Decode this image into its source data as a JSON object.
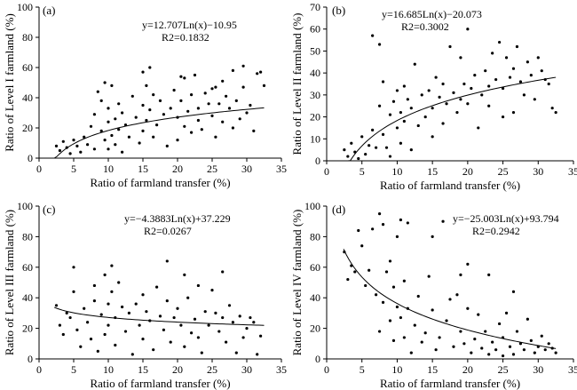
{
  "chart_data": [
    {
      "type": "scatter",
      "panel": "(a)",
      "xlabel": "Ratio of farmland transfer (%)",
      "ylabel": "Ratio of Level I farmland (%)",
      "xlim": [
        0,
        35
      ],
      "ylim": [
        0,
        100
      ],
      "xticks": [
        "0",
        "5",
        "10",
        "15",
        "20",
        "25",
        "30",
        "35"
      ],
      "yticks": [
        "0",
        "20",
        "40",
        "60",
        "80",
        "100"
      ],
      "equation": "y=12.707Ln(x)−10.95",
      "r2": "R2=0.1832",
      "fit": {
        "type": "log",
        "a": 12.707,
        "b": -10.95,
        "xmin": 2.2,
        "xmax": 32.5
      },
      "points": [
        [
          2.5,
          8
        ],
        [
          3,
          5
        ],
        [
          3.5,
          11
        ],
        [
          4,
          7
        ],
        [
          4.5,
          3
        ],
        [
          5,
          12
        ],
        [
          5.5,
          8
        ],
        [
          6,
          4
        ],
        [
          6.5,
          14
        ],
        [
          7,
          9
        ],
        [
          7.5,
          21
        ],
        [
          8,
          6
        ],
        [
          8,
          29
        ],
        [
          8.5,
          44
        ],
        [
          9,
          38
        ],
        [
          9,
          18
        ],
        [
          9.5,
          50
        ],
        [
          9.5,
          12
        ],
        [
          10,
          24
        ],
        [
          10,
          33
        ],
        [
          10,
          6
        ],
        [
          10.5,
          48
        ],
        [
          10.5,
          15
        ],
        [
          11,
          26
        ],
        [
          11,
          9
        ],
        [
          11.5,
          36
        ],
        [
          11.5,
          19
        ],
        [
          12,
          30
        ],
        [
          12,
          4
        ],
        [
          12.5,
          22
        ],
        [
          13,
          14
        ],
        [
          13.5,
          41
        ],
        [
          14,
          27
        ],
        [
          14.5,
          10
        ],
        [
          15,
          57
        ],
        [
          15,
          35
        ],
        [
          15,
          18
        ],
        [
          15.5,
          48
        ],
        [
          15.5,
          25
        ],
        [
          16,
          60
        ],
        [
          16,
          32
        ],
        [
          16.5,
          14
        ],
        [
          16.5,
          42
        ],
        [
          17,
          22
        ],
        [
          17.5,
          38
        ],
        [
          18,
          29
        ],
        [
          18.5,
          8
        ],
        [
          19,
          33
        ],
        [
          19.5,
          45
        ],
        [
          20,
          27
        ],
        [
          20,
          12
        ],
        [
          20.5,
          54
        ],
        [
          20.5,
          38
        ],
        [
          21,
          53
        ],
        [
          21,
          21
        ],
        [
          21.5,
          31
        ],
        [
          22,
          42
        ],
        [
          22,
          17
        ],
        [
          22.5,
          55
        ],
        [
          23,
          33
        ],
        [
          23,
          25
        ],
        [
          23.5,
          19
        ],
        [
          24,
          43
        ],
        [
          24.5,
          36
        ],
        [
          25,
          46
        ],
        [
          25,
          28
        ],
        [
          25.5,
          47
        ],
        [
          25.5,
          14
        ],
        [
          26,
          36
        ],
        [
          26.5,
          51
        ],
        [
          26.5,
          24
        ],
        [
          27,
          41
        ],
        [
          27.5,
          33
        ],
        [
          28,
          58
        ],
        [
          28,
          20
        ],
        [
          28.5,
          38
        ],
        [
          29,
          26
        ],
        [
          29.5,
          61
        ],
        [
          29.5,
          47
        ],
        [
          30,
          30
        ],
        [
          30.5,
          35
        ],
        [
          31,
          18
        ],
        [
          31.5,
          56
        ],
        [
          32,
          57
        ],
        [
          32.5,
          48
        ]
      ]
    },
    {
      "type": "scatter",
      "panel": "(b)",
      "xlabel": "Ratio of farmland transfer (%)",
      "ylabel": "Ratio of Level II farmland (%)",
      "xlim": [
        0,
        35
      ],
      "ylim": [
        0,
        70
      ],
      "xticks": [
        "0",
        "5",
        "10",
        "15",
        "20",
        "25",
        "30",
        "35"
      ],
      "yticks": [
        "0",
        "10",
        "20",
        "30",
        "40",
        "50",
        "60",
        "70"
      ],
      "equation": "y=16.685Ln(x)−20.073",
      "r2": "R2=0.3002",
      "fit": {
        "type": "log",
        "a": 16.685,
        "b": -20.073,
        "xmin": 2.6,
        "xmax": 32.5
      },
      "points": [
        [
          2.5,
          5
        ],
        [
          3,
          2
        ],
        [
          3.5,
          8
        ],
        [
          4,
          4
        ],
        [
          4.5,
          1
        ],
        [
          5,
          11
        ],
        [
          5.5,
          3
        ],
        [
          6,
          7
        ],
        [
          6.5,
          14
        ],
        [
          6.5,
          57
        ],
        [
          7,
          6
        ],
        [
          7.5,
          25
        ],
        [
          7.5,
          53
        ],
        [
          8,
          12
        ],
        [
          8,
          36
        ],
        [
          8.5,
          6
        ],
        [
          9,
          21
        ],
        [
          9,
          2
        ],
        [
          9.5,
          27
        ],
        [
          10,
          15
        ],
        [
          10,
          32
        ],
        [
          10.5,
          8
        ],
        [
          10.5,
          22
        ],
        [
          11,
          34
        ],
        [
          11,
          18
        ],
        [
          11.5,
          28
        ],
        [
          12,
          5
        ],
        [
          12,
          24
        ],
        [
          12.5,
          44
        ],
        [
          13,
          16
        ],
        [
          13.5,
          30
        ],
        [
          14,
          20
        ],
        [
          14.5,
          32
        ],
        [
          15,
          24
        ],
        [
          15,
          11
        ],
        [
          15.5,
          38
        ],
        [
          16,
          29
        ],
        [
          16.5,
          17
        ],
        [
          16.5,
          35
        ],
        [
          17,
          26
        ],
        [
          17.5,
          52
        ],
        [
          18,
          31
        ],
        [
          18.5,
          22
        ],
        [
          19,
          28
        ],
        [
          19,
          47
        ],
        [
          19.5,
          35
        ],
        [
          20,
          26
        ],
        [
          20,
          60
        ],
        [
          20.5,
          33
        ],
        [
          21,
          39
        ],
        [
          21.5,
          15
        ],
        [
          22,
          30
        ],
        [
          22.5,
          41
        ],
        [
          23,
          34
        ],
        [
          23,
          25
        ],
        [
          23.5,
          49
        ],
        [
          24,
          37
        ],
        [
          24.5,
          54
        ],
        [
          25,
          33
        ],
        [
          25,
          20
        ],
        [
          25.5,
          47
        ],
        [
          26,
          38
        ],
        [
          26.5,
          42
        ],
        [
          26.5,
          22
        ],
        [
          27,
          52
        ],
        [
          27.5,
          36
        ],
        [
          28,
          30
        ],
        [
          28.5,
          45
        ],
        [
          29,
          39
        ],
        [
          29.5,
          28
        ],
        [
          30,
          47
        ],
        [
          30.5,
          41
        ],
        [
          31,
          37
        ],
        [
          31.5,
          35
        ],
        [
          32,
          24
        ],
        [
          32.5,
          22
        ]
      ]
    },
    {
      "type": "scatter",
      "panel": "(c)",
      "xlabel": "Ratio of farmland transfer (%)",
      "ylabel": "Ratio of Level III farmland (%)",
      "xlim": [
        0,
        35
      ],
      "ylim": [
        0,
        100
      ],
      "xticks": [
        "0",
        "5",
        "10",
        "15",
        "20",
        "25",
        "30",
        "35"
      ],
      "yticks": [
        "0",
        "20",
        "40",
        "60",
        "80",
        "100"
      ],
      "equation": "y=−4.3883Ln(x)+37.229",
      "r2": "R2=0.0267",
      "fit": {
        "type": "log",
        "a": -4.3883,
        "b": 37.229,
        "xmin": 2.2,
        "xmax": 32.5
      },
      "points": [
        [
          2.5,
          35
        ],
        [
          3,
          22
        ],
        [
          3.5,
          16
        ],
        [
          4,
          30
        ],
        [
          4.5,
          27
        ],
        [
          5,
          60
        ],
        [
          5,
          44
        ],
        [
          5.5,
          19
        ],
        [
          6,
          8
        ],
        [
          6.5,
          33
        ],
        [
          7,
          24
        ],
        [
          7.5,
          13
        ],
        [
          8,
          48
        ],
        [
          8,
          38
        ],
        [
          8.5,
          5
        ],
        [
          9,
          29
        ],
        [
          9.5,
          55
        ],
        [
          9.5,
          16
        ],
        [
          10,
          36
        ],
        [
          10,
          22
        ],
        [
          10.5,
          61
        ],
        [
          10.5,
          44
        ],
        [
          11,
          27
        ],
        [
          11,
          9
        ],
        [
          11.5,
          50
        ],
        [
          12,
          34
        ],
        [
          12.5,
          18
        ],
        [
          13,
          30
        ],
        [
          13.5,
          3
        ],
        [
          14,
          36
        ],
        [
          14.5,
          22
        ],
        [
          15,
          42
        ],
        [
          15,
          13
        ],
        [
          15.5,
          31
        ],
        [
          16,
          25
        ],
        [
          16.5,
          6
        ],
        [
          17,
          47
        ],
        [
          17.5,
          28
        ],
        [
          18,
          19
        ],
        [
          18.5,
          64
        ],
        [
          18.5,
          38
        ],
        [
          19,
          11
        ],
        [
          19.5,
          27
        ],
        [
          20,
          33
        ],
        [
          20.5,
          22
        ],
        [
          21,
          55
        ],
        [
          21,
          8
        ],
        [
          21.5,
          40
        ],
        [
          22,
          17
        ],
        [
          22.5,
          26
        ],
        [
          23,
          48
        ],
        [
          23,
          14
        ],
        [
          23.5,
          4
        ],
        [
          24,
          31
        ],
        [
          24.5,
          22
        ],
        [
          25,
          45
        ],
        [
          25.5,
          30
        ],
        [
          26,
          18
        ],
        [
          26.5,
          57
        ],
        [
          26.5,
          27
        ],
        [
          27,
          11
        ],
        [
          27.5,
          35
        ],
        [
          28,
          24
        ],
        [
          28.5,
          4
        ],
        [
          29,
          28
        ],
        [
          29.5,
          14
        ],
        [
          30,
          20
        ],
        [
          30.5,
          27
        ],
        [
          31,
          24
        ],
        [
          31.5,
          3
        ],
        [
          32,
          15
        ]
      ]
    },
    {
      "type": "scatter",
      "panel": "(d)",
      "xlabel": "Ratio of farmland transfer (%)",
      "ylabel": "Ratio of Level IV farmland (%)",
      "xlim": [
        0,
        35
      ],
      "ylim": [
        0,
        100
      ],
      "xticks": [
        "0",
        "5",
        "10",
        "15",
        "20",
        "25",
        "30",
        "35"
      ],
      "yticks": [
        "0",
        "20",
        "40",
        "60",
        "80",
        "100"
      ],
      "equation": "y=−25.003Ln(x)+93.794",
      "r2": "R2=0.2942",
      "fit": {
        "type": "log",
        "a": -25.003,
        "b": 93.794,
        "xmin": 2.4,
        "xmax": 32.5
      },
      "points": [
        [
          2.5,
          70
        ],
        [
          3,
          52
        ],
        [
          3.5,
          61
        ],
        [
          4,
          57
        ],
        [
          4.5,
          84
        ],
        [
          5,
          74
        ],
        [
          5.5,
          48
        ],
        [
          6,
          58
        ],
        [
          6.5,
          85
        ],
        [
          7,
          42
        ],
        [
          7.5,
          18
        ],
        [
          7.5,
          95
        ],
        [
          8,
          88
        ],
        [
          8,
          37
        ],
        [
          8.5,
          57
        ],
        [
          9,
          25
        ],
        [
          9,
          64
        ],
        [
          9.5,
          47
        ],
        [
          9.5,
          12
        ],
        [
          10,
          34
        ],
        [
          10,
          80
        ],
        [
          10.5,
          27
        ],
        [
          10.5,
          91
        ],
        [
          11,
          14
        ],
        [
          11,
          51
        ],
        [
          11.5,
          33
        ],
        [
          11.5,
          89
        ],
        [
          12,
          4
        ],
        [
          12.5,
          22
        ],
        [
          13,
          41
        ],
        [
          13.5,
          11
        ],
        [
          14,
          17
        ],
        [
          14.5,
          54
        ],
        [
          15,
          32
        ],
        [
          15,
          80
        ],
        [
          15.5,
          6
        ],
        [
          16,
          14
        ],
        [
          16.5,
          90
        ],
        [
          17,
          25
        ],
        [
          17.5,
          39
        ],
        [
          18,
          8
        ],
        [
          18.5,
          42
        ],
        [
          19,
          18
        ],
        [
          19,
          55
        ],
        [
          19.5,
          10
        ],
        [
          20,
          62
        ],
        [
          20,
          33
        ],
        [
          20.5,
          4
        ],
        [
          21,
          13
        ],
        [
          21.5,
          29
        ],
        [
          22,
          7
        ],
        [
          22.5,
          18
        ],
        [
          23,
          55
        ],
        [
          23,
          3
        ],
        [
          23.5,
          11
        ],
        [
          24,
          6
        ],
        [
          24.5,
          23
        ],
        [
          25,
          2
        ],
        [
          25,
          14
        ],
        [
          25.5,
          30
        ],
        [
          26,
          8
        ],
        [
          26.5,
          44
        ],
        [
          26.5,
          3
        ],
        [
          27,
          18
        ],
        [
          27.5,
          10
        ],
        [
          28,
          6
        ],
        [
          28.5,
          26
        ],
        [
          29,
          12
        ],
        [
          29.5,
          4
        ],
        [
          30,
          8
        ],
        [
          30.5,
          15
        ],
        [
          31,
          6
        ],
        [
          31.5,
          10
        ],
        [
          32,
          7
        ],
        [
          32.5,
          4
        ]
      ]
    }
  ]
}
